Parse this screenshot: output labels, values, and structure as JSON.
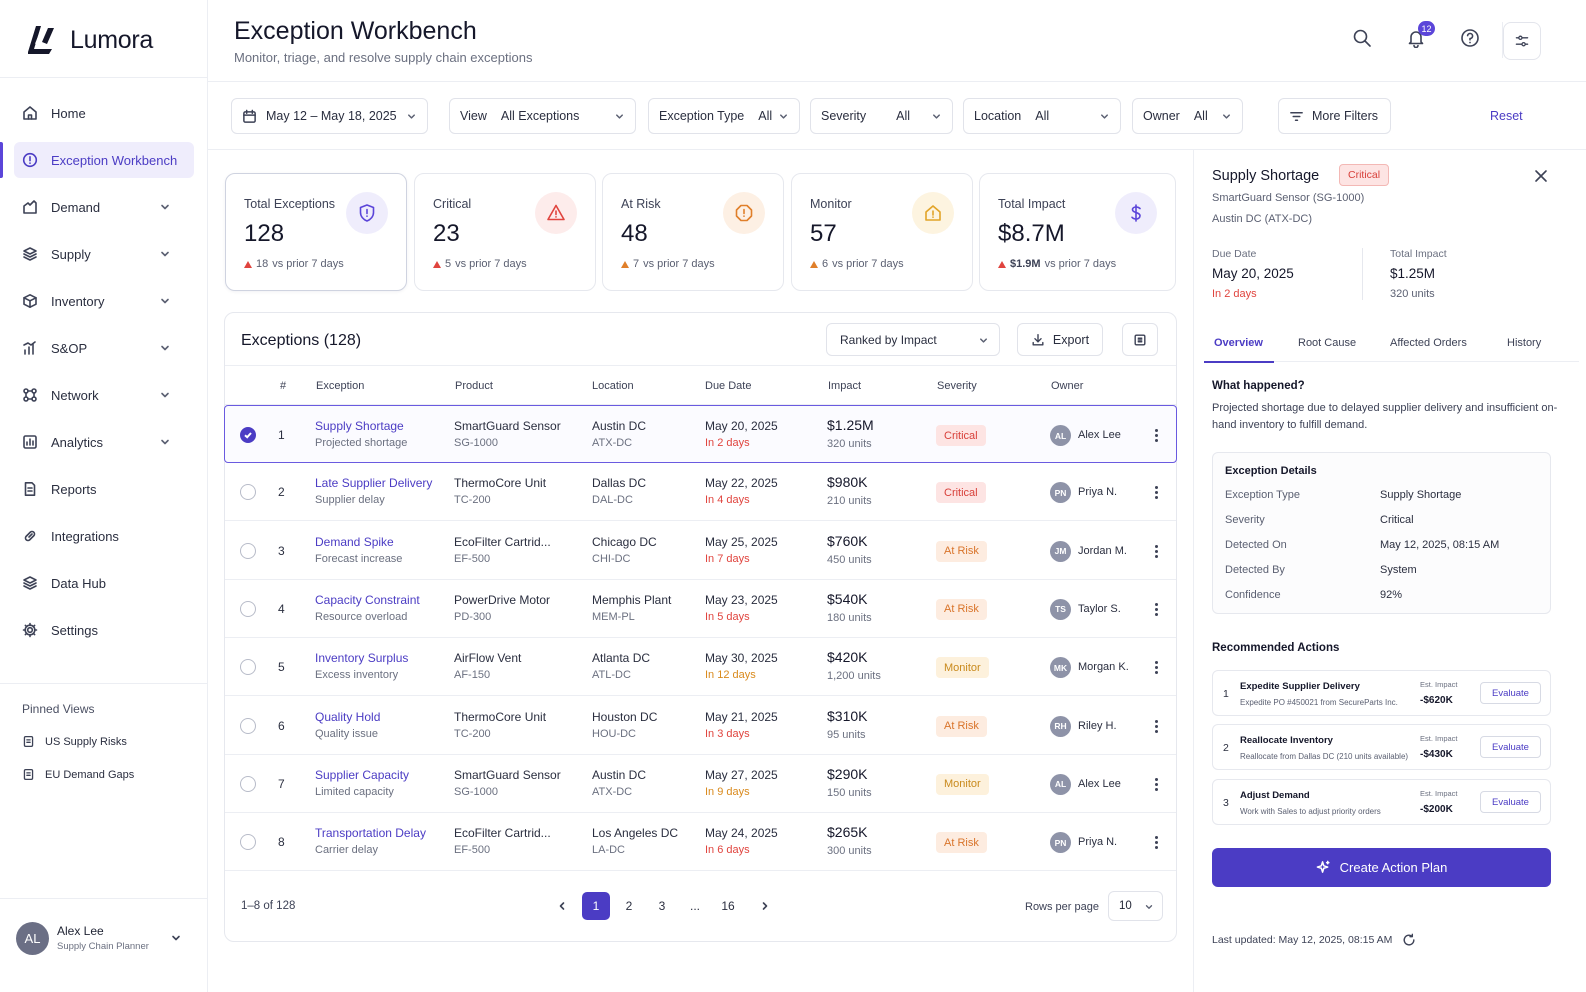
{
  "app": {
    "name": "Lumora"
  },
  "sidebar": {
    "items": [
      {
        "label": "Home",
        "icon": "home-icon"
      },
      {
        "label": "Exception Workbench",
        "icon": "alert-circle-icon",
        "active": true
      },
      {
        "label": "Demand",
        "icon": "demand-icon",
        "expandable": true
      },
      {
        "label": "Supply",
        "icon": "layers-icon",
        "expandable": true
      },
      {
        "label": "Inventory",
        "icon": "box-icon",
        "expandable": true
      },
      {
        "label": "S&OP",
        "icon": "bar-chart-icon",
        "expandable": true
      },
      {
        "label": "Network",
        "icon": "network-icon",
        "expandable": true
      },
      {
        "label": "Analytics",
        "icon": "analytics-icon",
        "expandable": true
      },
      {
        "label": "Reports",
        "icon": "document-icon"
      },
      {
        "label": "Integrations",
        "icon": "link-icon"
      },
      {
        "label": "Data Hub",
        "icon": "stack-icon"
      },
      {
        "label": "Settings",
        "icon": "gear-icon"
      }
    ],
    "pinned_title": "Pinned Views",
    "pinned": [
      "US Supply Risks",
      "EU Demand Gaps"
    ],
    "user": {
      "initials": "AL",
      "name": "Alex Lee",
      "role": "Supply Chain Planner"
    }
  },
  "header": {
    "title": "Exception Workbench",
    "subtitle": "Monitor, triage, and resolve supply chain exceptions",
    "notification_count": "12"
  },
  "filters": {
    "date_range": "May 12 – May 18, 2025",
    "view": {
      "label": "View",
      "value": "All Exceptions"
    },
    "exception_type": {
      "label": "Exception Type",
      "value": "All"
    },
    "severity": {
      "label": "Severity",
      "value": "All"
    },
    "location": {
      "label": "Location",
      "value": "All"
    },
    "owner": {
      "label": "Owner",
      "value": "All"
    },
    "more_filters": "More Filters",
    "reset": "Reset"
  },
  "kpis": [
    {
      "label": "Total Exceptions",
      "value": "128",
      "delta": "18",
      "delta_suffix": "vs prior 7 days",
      "icon": "shield-alert-icon",
      "color": "#5b45d9",
      "bg": "#efedfc"
    },
    {
      "label": "Critical",
      "value": "23",
      "delta": "5",
      "delta_suffix": "vs prior 7 days",
      "icon": "warning-triangle-icon",
      "color": "#e0443e",
      "bg": "#fdeceb"
    },
    {
      "label": "At Risk",
      "value": "48",
      "delta": "7",
      "delta_suffix": "vs prior 7 days",
      "icon": "warning-octagon-icon",
      "color": "#e07f2a",
      "bg": "#fdf0e4"
    },
    {
      "label": "Monitor",
      "value": "57",
      "delta": "6",
      "delta_suffix": "vs prior 7 days",
      "icon": "monitor-home-icon",
      "color": "#e2a428",
      "bg": "#fdf4e0"
    },
    {
      "label": "Total Impact",
      "value": "$8.7M",
      "delta": "$1.9M",
      "delta_suffix": "vs prior 7 days",
      "icon": "dollar-icon",
      "color": "#5b45d9",
      "bg": "#efedfc"
    }
  ],
  "table": {
    "title": "Exceptions (128)",
    "rank_by": "Ranked by Impact",
    "export": "Export",
    "columns": [
      "#",
      "Exception",
      "Product",
      "Location",
      "Due Date",
      "Impact",
      "Severity",
      "Owner"
    ],
    "rows": [
      {
        "n": "1",
        "exception": "Supply Shortage",
        "exception_sub": "Projected shortage",
        "product": "SmartGuard Sensor",
        "sku": "SG-1000",
        "location": "Austin DC",
        "loc_code": "ATX-DC",
        "due": "May 20, 2025",
        "due_in": "In 2 days",
        "due_color": "#e0443e",
        "impact": "$1.25M",
        "units": "320 units",
        "severity": "Critical",
        "sev_class": "critical",
        "owner_initials": "AL",
        "owner": "Alex Lee",
        "selected": true
      },
      {
        "n": "2",
        "exception": "Late Supplier Delivery",
        "exception_sub": "Supplier delay",
        "product": "ThermoCore Unit",
        "sku": "TC-200",
        "location": "Dallas DC",
        "loc_code": "DAL-DC",
        "due": "May 22, 2025",
        "due_in": "In 4 days",
        "due_color": "#e0443e",
        "impact": "$980K",
        "units": "210 units",
        "severity": "Critical",
        "sev_class": "critical",
        "owner_initials": "PN",
        "owner": "Priya N."
      },
      {
        "n": "3",
        "exception": "Demand Spike",
        "exception_sub": "Forecast increase",
        "product": "EcoFilter Cartrid...",
        "sku": "EF-500",
        "location": "Chicago DC",
        "loc_code": "CHI-DC",
        "due": "May 25, 2025",
        "due_in": "In 7 days",
        "due_color": "#e0443e",
        "impact": "$760K",
        "units": "450 units",
        "severity": "At Risk",
        "sev_class": "risk",
        "owner_initials": "JM",
        "owner": "Jordan M."
      },
      {
        "n": "4",
        "exception": "Capacity Constraint",
        "exception_sub": "Resource overload",
        "product": "PowerDrive Motor",
        "sku": "PD-300",
        "location": "Memphis Plant",
        "loc_code": "MEM-PL",
        "due": "May 23, 2025",
        "due_in": "In 5 days",
        "due_color": "#e0443e",
        "impact": "$540K",
        "units": "180 units",
        "severity": "At Risk",
        "sev_class": "risk",
        "owner_initials": "TS",
        "owner": "Taylor S."
      },
      {
        "n": "5",
        "exception": "Inventory Surplus",
        "exception_sub": "Excess inventory",
        "product": "AirFlow Vent",
        "sku": "AF-150",
        "location": "Atlanta DC",
        "loc_code": "ATL-DC",
        "due": "May 30, 2025",
        "due_in": "In 12 days",
        "due_color": "#d98a1d",
        "impact": "$420K",
        "units": "1,200 units",
        "severity": "Monitor",
        "sev_class": "monitor",
        "owner_initials": "MK",
        "owner": "Morgan K."
      },
      {
        "n": "6",
        "exception": "Quality Hold",
        "exception_sub": "Quality issue",
        "product": "ThermoCore Unit",
        "sku": "TC-200",
        "location": "Houston DC",
        "loc_code": "HOU-DC",
        "due": "May 21, 2025",
        "due_in": "In 3 days",
        "due_color": "#e0443e",
        "impact": "$310K",
        "units": "95 units",
        "severity": "At Risk",
        "sev_class": "risk",
        "owner_initials": "RH",
        "owner": "Riley H."
      },
      {
        "n": "7",
        "exception": "Supplier Capacity",
        "exception_sub": "Limited capacity",
        "product": "SmartGuard Sensor",
        "sku": "SG-1000",
        "location": "Austin DC",
        "loc_code": "ATX-DC",
        "due": "May 27, 2025",
        "due_in": "In 9 days",
        "due_color": "#d98a1d",
        "impact": "$290K",
        "units": "150 units",
        "severity": "Monitor",
        "sev_class": "monitor",
        "owner_initials": "AL",
        "owner": "Alex Lee"
      },
      {
        "n": "8",
        "exception": "Transportation Delay",
        "exception_sub": "Carrier delay",
        "product": "EcoFilter Cartrid...",
        "sku": "EF-500",
        "location": "Los Angeles DC",
        "loc_code": "LA-DC",
        "due": "May 24, 2025",
        "due_in": "In 6 days",
        "due_color": "#e0443e",
        "impact": "$265K",
        "units": "300 units",
        "severity": "At Risk",
        "sev_class": "risk",
        "owner_initials": "PN",
        "owner": "Priya N."
      }
    ],
    "range_text": "1–8 of 128",
    "pages": [
      "1",
      "2",
      "3",
      "...",
      "16"
    ],
    "rows_per_page_label": "Rows per page",
    "rows_per_page": "10"
  },
  "detail": {
    "title": "Supply Shortage",
    "severity": "Critical",
    "product": "SmartGuard Sensor (SG-1000)",
    "location": "Austin DC (ATX-DC)",
    "due_label": "Due Date",
    "due_value": "May 20, 2025",
    "due_in": "In 2 days",
    "impact_label": "Total Impact",
    "impact_value": "$1.25M",
    "impact_units": "320 units",
    "tabs": [
      "Overview",
      "Root Cause",
      "Affected Orders",
      "History"
    ],
    "what_happened_title": "What happened?",
    "what_happened": "Projected shortage due to delayed supplier delivery and insufficient on-hand inventory to fulfill demand.",
    "details_title": "Exception Details",
    "details": [
      {
        "k": "Exception Type",
        "v": "Supply Shortage"
      },
      {
        "k": "Severity",
        "v": "Critical"
      },
      {
        "k": "Detected On",
        "v": "May 12, 2025, 08:15 AM"
      },
      {
        "k": "Detected By",
        "v": "System"
      },
      {
        "k": "Confidence",
        "v": "92%"
      }
    ],
    "actions_title": "Recommended Actions",
    "actions": [
      {
        "n": "1",
        "title": "Expedite Supplier Delivery",
        "sub": "Expedite PO #450021 from SecureParts Inc.",
        "est_label": "Est. Impact",
        "est": "-$620K",
        "btn": "Evaluate"
      },
      {
        "n": "2",
        "title": "Reallocate Inventory",
        "sub": "Reallocate from Dallas DC (210 units available)",
        "est_label": "Est. Impact",
        "est": "-$430K",
        "btn": "Evaluate"
      },
      {
        "n": "3",
        "title": "Adjust Demand",
        "sub": "Work with Sales to adjust priority orders",
        "est_label": "Est. Impact",
        "est": "-$200K",
        "btn": "Evaluate"
      }
    ],
    "cta": "Create Action Plan",
    "last_updated": "Last updated: May 12, 2025, 08:15 AM"
  }
}
